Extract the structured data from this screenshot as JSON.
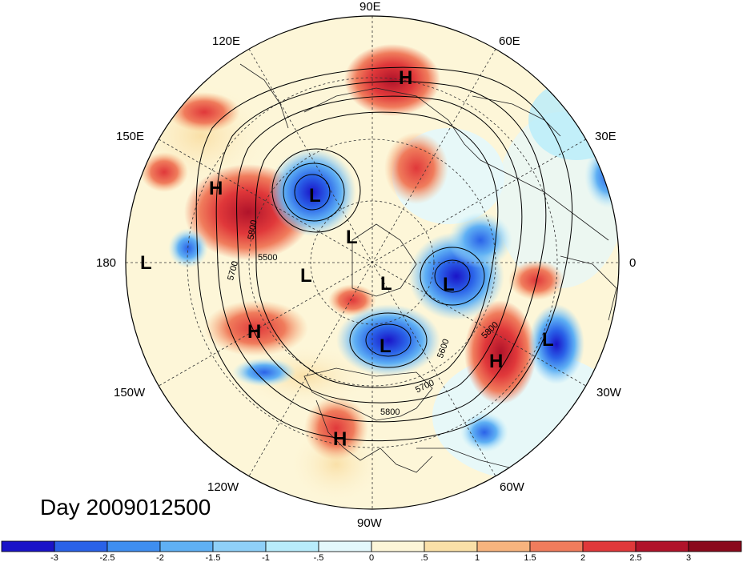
{
  "day_label": "Day 2009012500",
  "longitude_labels": {
    "deg0": "0",
    "deg30e": "30E",
    "deg60e": "60E",
    "deg90e": "90E",
    "deg120e": "120E",
    "deg150e": "150E",
    "deg180": "180",
    "deg150w": "150W",
    "deg120w": "120W",
    "deg90w": "90W",
    "deg60w": "60W",
    "deg30w": "30W"
  },
  "pressure_centers": {
    "high": "H",
    "low": "L"
  },
  "contour_labels": {
    "c5500": "5500",
    "c5600": "5600",
    "c5700a": "5700",
    "c5700b": "5700",
    "c5800a": "5800",
    "c5800b": "5800",
    "c5800c": "5800"
  },
  "colorbar": {
    "ticks": [
      "-3",
      "-2.5",
      "-2",
      "-1.5",
      "-1",
      "-.5",
      "0",
      ".5",
      "1",
      "1.5",
      "2",
      "2.5",
      "3"
    ],
    "colors": [
      "#1a14c8",
      "#2a62e8",
      "#3f8ef0",
      "#5fb0f4",
      "#8fd0f8",
      "#b8ecfb",
      "#e4f8fc",
      "#fdf6d8",
      "#fae0a8",
      "#f7b47e",
      "#f07c5c",
      "#e0383a",
      "#b0132a",
      "#8a0a1c"
    ]
  }
}
